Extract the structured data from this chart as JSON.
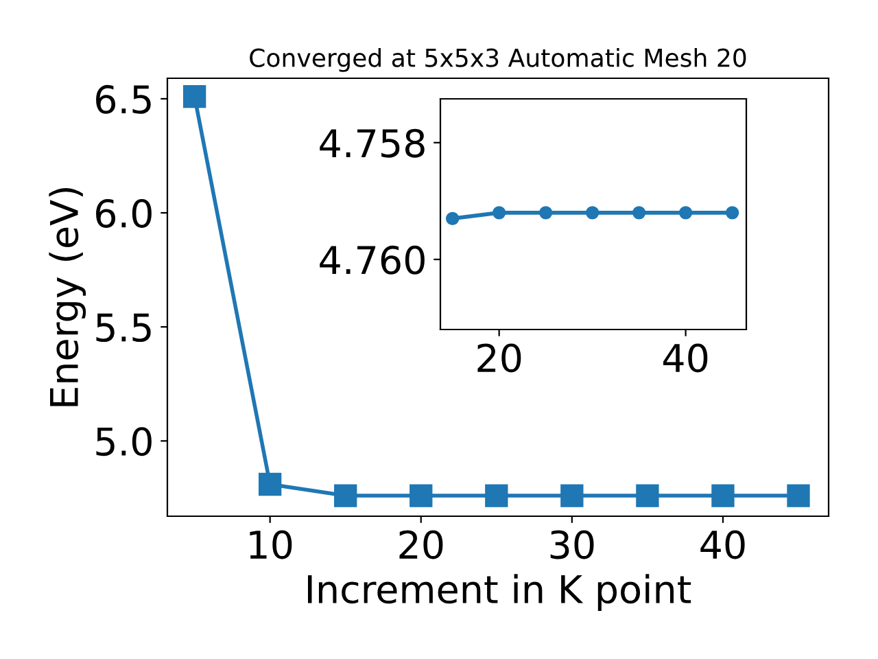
{
  "chart_data": [
    {
      "type": "line",
      "title": "Converged at 5x5x3 Automatic Mesh 20",
      "xlabel": "Increment in K point",
      "ylabel": "Energy (eV)",
      "x": [
        5,
        10,
        15,
        20,
        25,
        30,
        35,
        40,
        45
      ],
      "series": [
        {
          "color": "#1f77b4",
          "values": [
            6.51,
            4.81,
            4.76,
            4.76,
            4.76,
            4.76,
            4.76,
            4.76,
            4.76
          ]
        }
      ],
      "xlim": [
        3.2,
        47
      ],
      "ylim": [
        4.67,
        6.59
      ],
      "xticks": [
        10,
        20,
        30,
        40
      ],
      "yticks": [
        {
          "value": 5,
          "label": "5.0"
        },
        5.5,
        {
          "value": 6,
          "label": "6.0"
        },
        6.5
      ],
      "marker": "square",
      "line_style": "solid",
      "grid": false,
      "legend": false
    },
    {
      "type": "line",
      "x": [
        15,
        20,
        25,
        30,
        35,
        40,
        45
      ],
      "series": [
        {
          "color": "#1f77b4",
          "values": [
            4.7593,
            4.7592,
            4.7592,
            4.7592,
            4.7592,
            4.7592,
            4.7592
          ]
        }
      ],
      "xlim": [
        13.7,
        46.5
      ],
      "ylim": [
        4.7612,
        4.75725
      ],
      "xticks": [
        20,
        40
      ],
      "yticks": [
        {
          "value": 4.758,
          "label": "4.758"
        },
        {
          "value": 4.76,
          "label": "4.760"
        }
      ],
      "marker": "circle",
      "line_style": "solid",
      "grid": false,
      "legend": false
    }
  ]
}
